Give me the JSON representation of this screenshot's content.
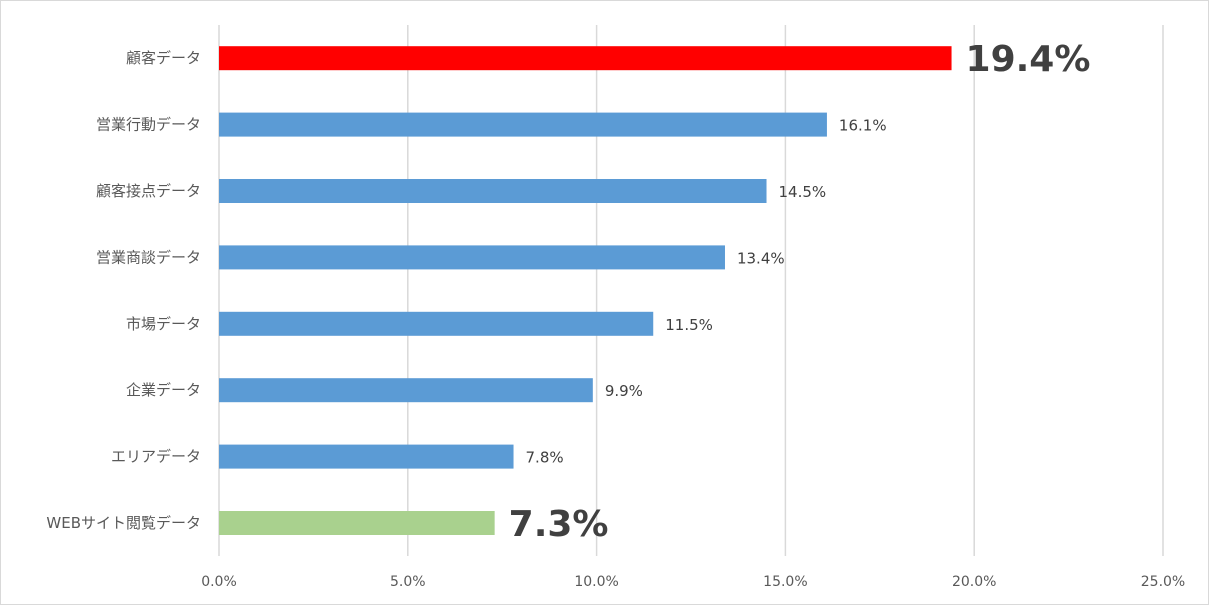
{
  "chart_data": {
    "type": "bar",
    "orientation": "horizontal",
    "categories": [
      "顧客データ",
      "営業行動データ",
      "顧客接点データ",
      "営業商談データ",
      "市場データ",
      "企業データ",
      "エリアデータ",
      "WEBサイト閲覧データ"
    ],
    "values": [
      19.4,
      16.1,
      14.5,
      13.4,
      11.5,
      9.9,
      7.8,
      7.3
    ],
    "value_labels": [
      "19.4%",
      "16.1%",
      "14.5%",
      "13.4%",
      "11.5%",
      "9.9%",
      "7.8%",
      "7.3%"
    ],
    "highlight": [
      true,
      false,
      false,
      false,
      false,
      false,
      false,
      true
    ],
    "bar_colors": [
      "#ff0000",
      "#5b9bd5",
      "#5b9bd5",
      "#5b9bd5",
      "#5b9bd5",
      "#5b9bd5",
      "#5b9bd5",
      "#a9d18e"
    ],
    "xlim": [
      0,
      25
    ],
    "x_ticks": [
      0,
      5,
      10,
      15,
      20,
      25
    ],
    "x_tick_labels": [
      "0.0%",
      "5.0%",
      "10.0%",
      "15.0%",
      "20.0%",
      "25.0%"
    ],
    "grid": "vertical",
    "legend": "none",
    "title": "",
    "xlabel": "",
    "ylabel": ""
  }
}
